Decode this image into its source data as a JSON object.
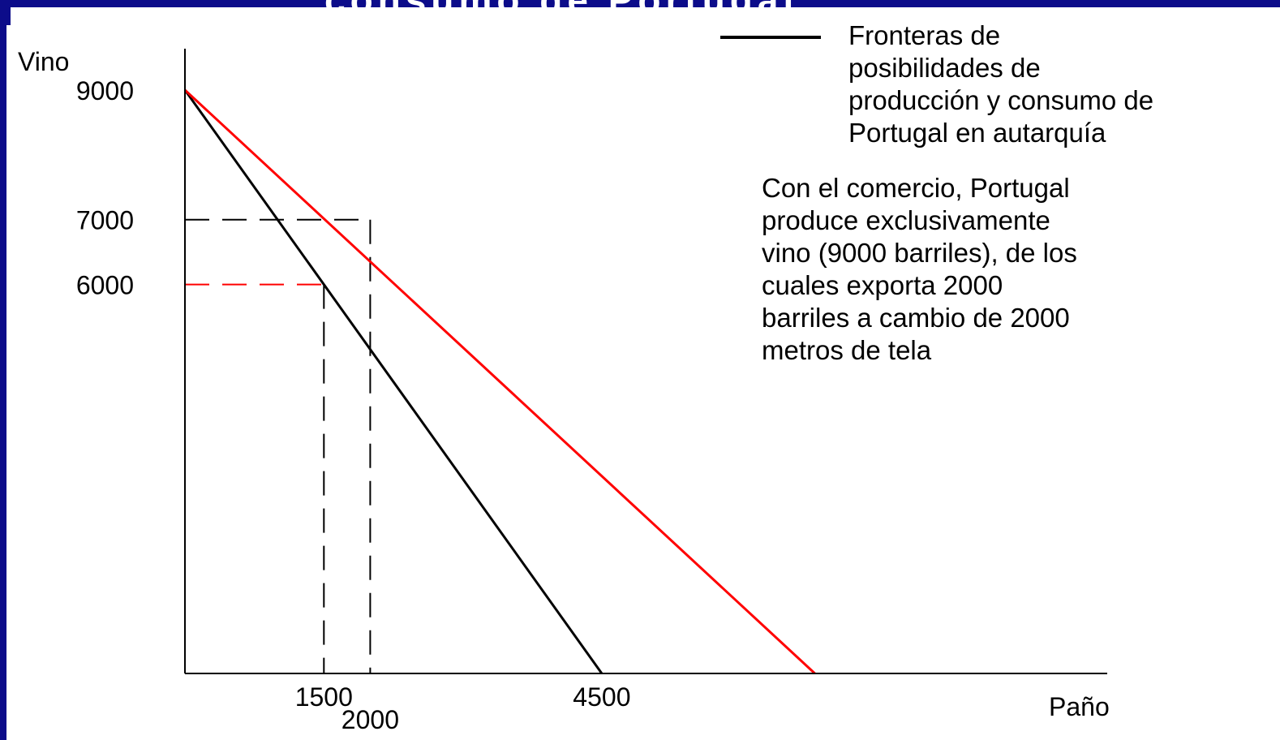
{
  "slide": {
    "title": "consumo de Portugal",
    "frame_color": "#0c0c8a"
  },
  "legend": {
    "label": "Fronteras de\nposibilidades de\nproducción y consumo de\nPortugal en autarquía",
    "color": "#000000"
  },
  "annotation": "Con el comercio, Portugal\nproduce exclusivamente\nvino (9000 barriles), de los\ncuales exporta 2000\nbarriles a cambio de 2000\nmetros de tela",
  "chart_data": {
    "type": "line",
    "xlabel": "Paño",
    "ylabel": "Vino",
    "xlim": [
      0,
      10000
    ],
    "ylim": [
      0,
      9700
    ],
    "x_ticks": [
      1500,
      2000,
      4500
    ],
    "y_ticks": [
      9000,
      7000,
      6000
    ],
    "series": [
      {
        "name": "Fronteras de posibilidades de producción y consumo de Portugal en autarquía",
        "color": "#000000",
        "points": [
          [
            0,
            9000
          ],
          [
            4500,
            0
          ]
        ]
      },
      {
        "color": "#ff0000",
        "points": [
          [
            0,
            9000
          ],
          [
            6800,
            0
          ]
        ]
      }
    ],
    "reference_lines": [
      {
        "from": [
          0,
          7000
        ],
        "to": [
          2000,
          7000
        ],
        "style": "dashed",
        "color": "#000000"
      },
      {
        "from": [
          2000,
          7000
        ],
        "to": [
          2000,
          0
        ],
        "style": "dashed",
        "color": "#000000"
      },
      {
        "from": [
          0,
          6000
        ],
        "to": [
          1500,
          6000
        ],
        "style": "dashed",
        "color": "#ff0000"
      },
      {
        "from": [
          1500,
          6000
        ],
        "to": [
          1500,
          0
        ],
        "style": "dashed",
        "color": "#000000"
      }
    ],
    "grid": false
  }
}
